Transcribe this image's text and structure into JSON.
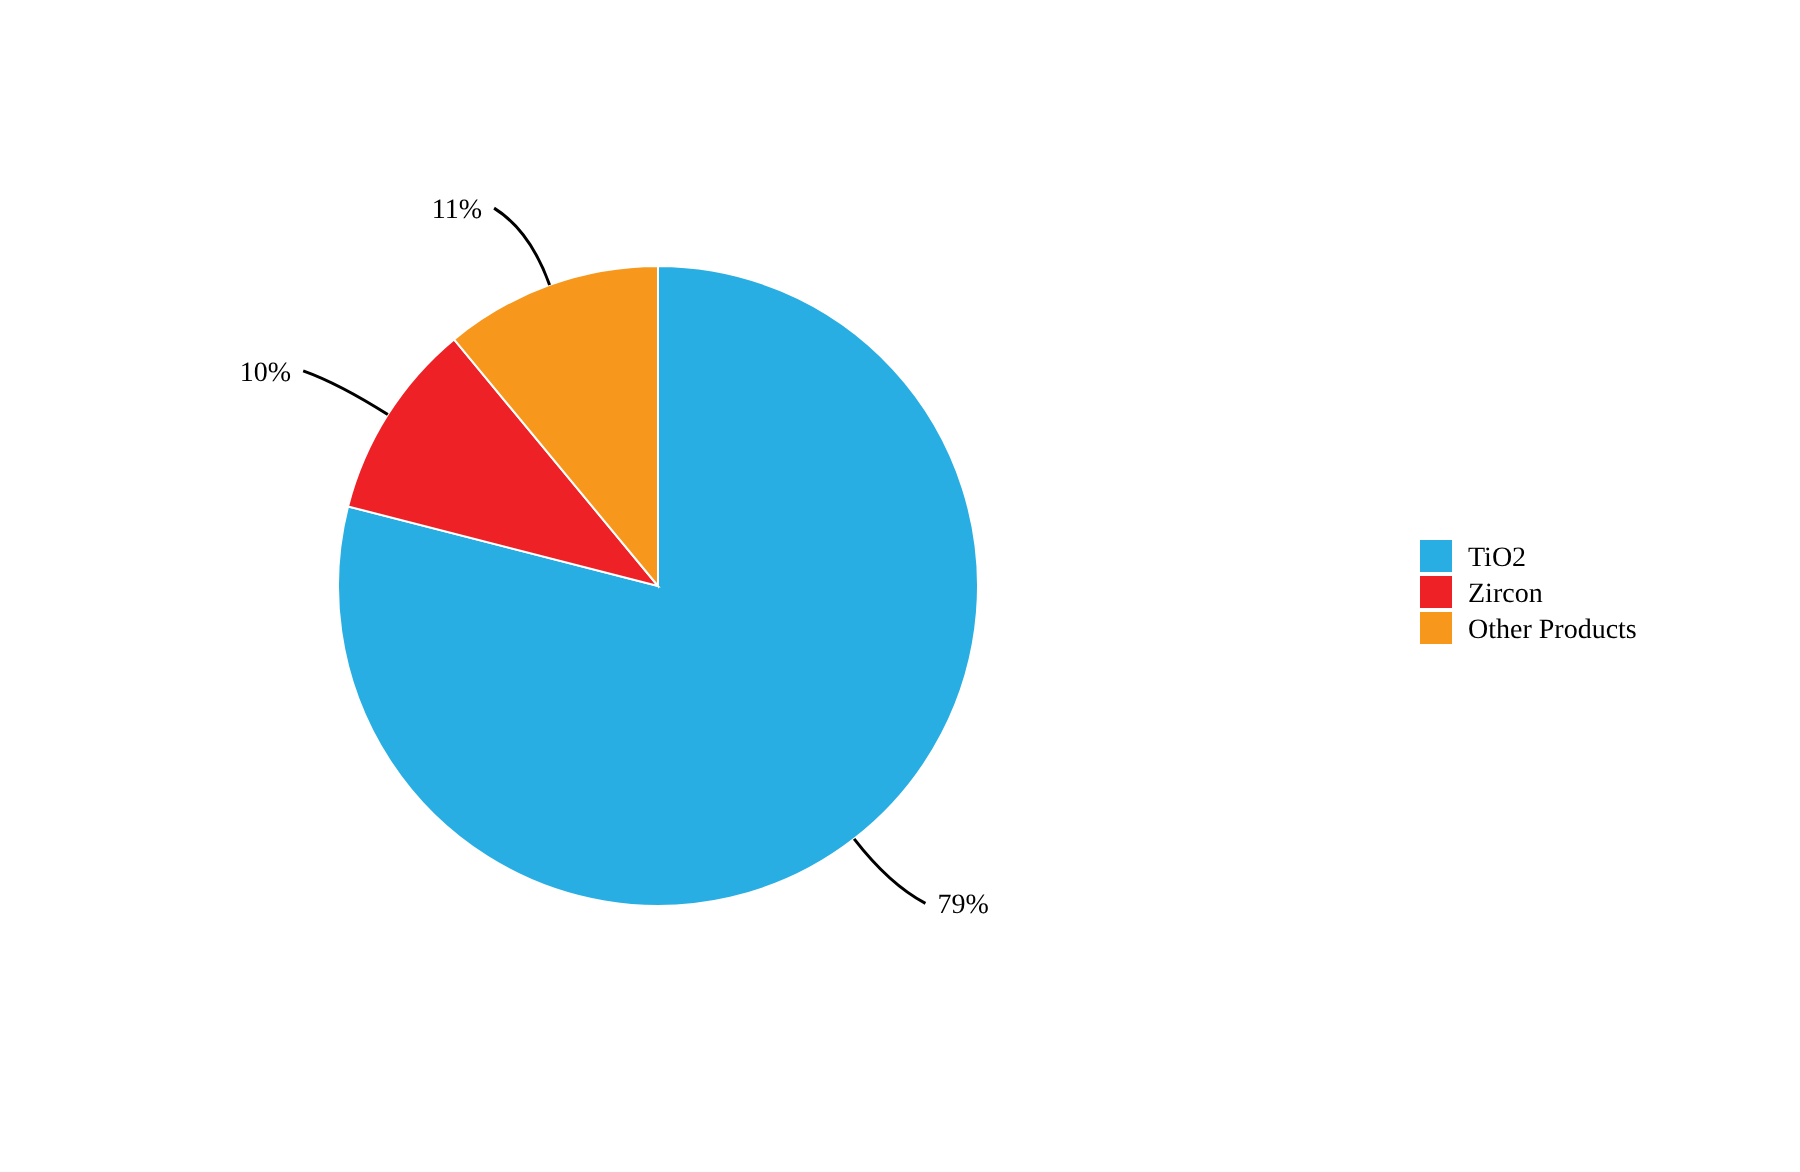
{
  "chart_data": {
    "type": "pie",
    "categories": [
      "TiO2",
      "Zircon",
      "Other Products"
    ],
    "values": [
      79,
      10,
      11
    ],
    "colors": [
      "#29aee3",
      "#ee2226",
      "#f7981d"
    ],
    "value_labels": [
      "79%",
      "10%",
      "11%"
    ],
    "legend": "right"
  }
}
